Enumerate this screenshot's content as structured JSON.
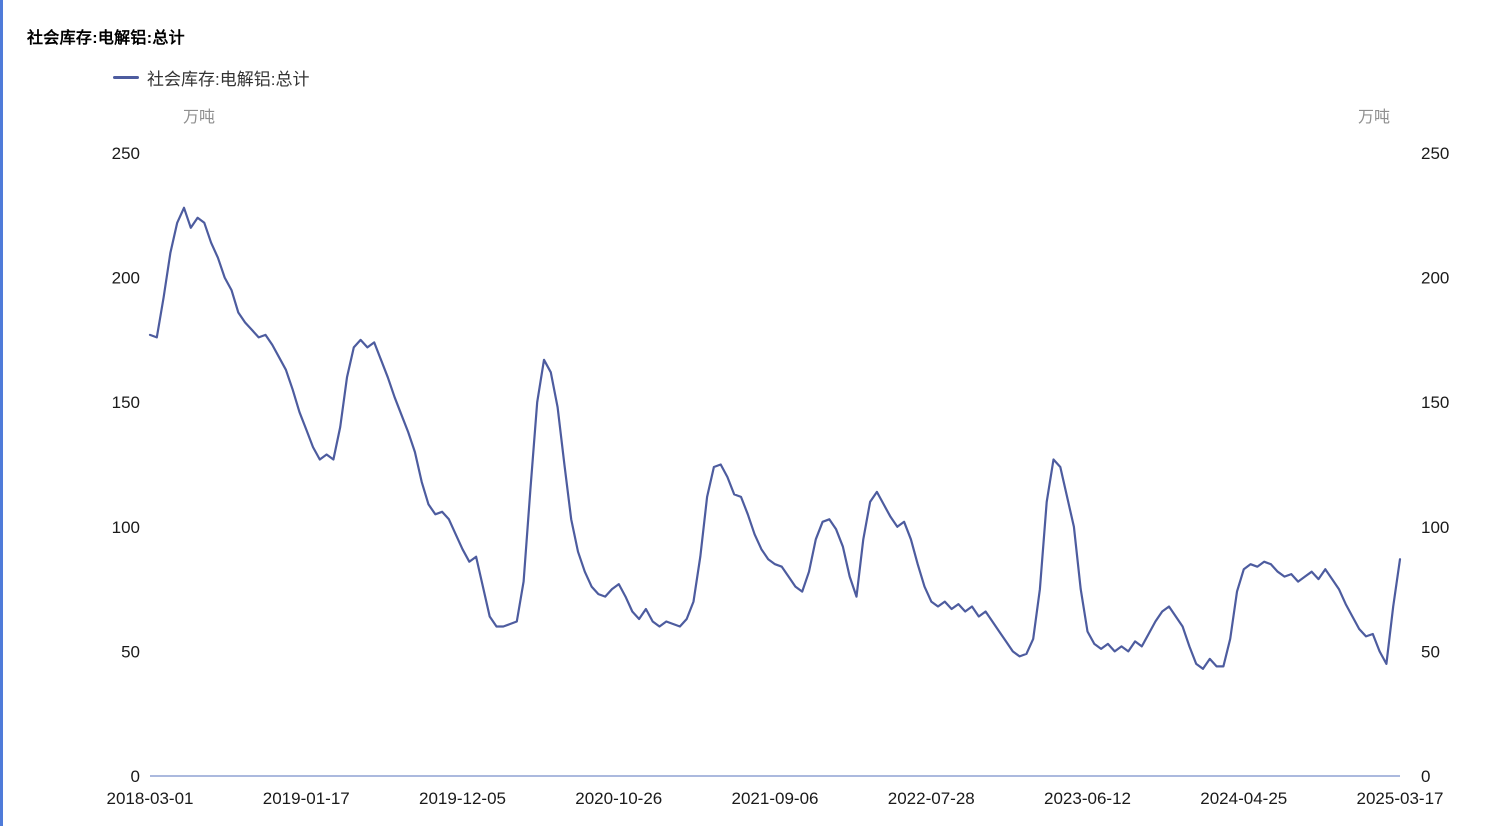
{
  "title": "社会库存:电解铝:总计",
  "legend": {
    "label": "社会库存:电解铝:总计"
  },
  "axis": {
    "unit_left": "万吨",
    "unit_right": "万吨",
    "y_ticks": [
      250,
      200,
      150,
      100,
      50,
      0
    ],
    "x_ticks": [
      "2018-03-01",
      "2019-01-17",
      "2019-12-05",
      "2020-10-26",
      "2021-09-06",
      "2022-07-28",
      "2023-06-12",
      "2024-04-25",
      "2025-03-17"
    ]
  },
  "colors": {
    "line": "#4d5c9f",
    "axis_line": "#8fa2d4",
    "tick_text": "#1a1a1a",
    "unit_text": "#8f8f8f",
    "left_border": "#4f7bd9"
  },
  "chart_data": {
    "type": "line",
    "title": "社会库存:电解铝:总计",
    "series_name": "社会库存:电解铝:总计",
    "ylabel": "万吨",
    "ylim": [
      0,
      250
    ],
    "grid": false,
    "legend_position": "top-left",
    "x_start": "2018-03-01",
    "x_end": "2025-03-17",
    "x_tick_labels": [
      "2018-03-01",
      "2019-01-17",
      "2019-12-05",
      "2020-10-26",
      "2021-09-06",
      "2022-07-28",
      "2023-06-12",
      "2024-04-25",
      "2025-03-17"
    ],
    "values": [
      177,
      176,
      192,
      210,
      222,
      228,
      220,
      224,
      222,
      214,
      208,
      200,
      195,
      186,
      182,
      179,
      176,
      177,
      173,
      168,
      163,
      155,
      146,
      139,
      132,
      127,
      129,
      127,
      140,
      160,
      172,
      175,
      172,
      174,
      167,
      160,
      152,
      145,
      138,
      130,
      118,
      109,
      105,
      106,
      103,
      97,
      91,
      86,
      88,
      76,
      64,
      60,
      60,
      61,
      62,
      78,
      115,
      150,
      167,
      162,
      148,
      125,
      103,
      90,
      82,
      76,
      73,
      72,
      75,
      77,
      72,
      66,
      63,
      67,
      62,
      60,
      62,
      61,
      60,
      63,
      70,
      88,
      112,
      124,
      125,
      120,
      113,
      112,
      105,
      97,
      91,
      87,
      85,
      84,
      80,
      76,
      74,
      82,
      95,
      102,
      103,
      99,
      92,
      80,
      72,
      95,
      110,
      114,
      109,
      104,
      100,
      102,
      95,
      85,
      76,
      70,
      68,
      70,
      67,
      69,
      66,
      68,
      64,
      66,
      62,
      58,
      54,
      50,
      48,
      49,
      55,
      75,
      110,
      127,
      124,
      112,
      100,
      75,
      58,
      53,
      51,
      53,
      50,
      52,
      50,
      54,
      52,
      57,
      62,
      66,
      68,
      64,
      60,
      52,
      45,
      43,
      47,
      44,
      44,
      55,
      74,
      83,
      85,
      84,
      86,
      85,
      82,
      80,
      81,
      78,
      80,
      82,
      79,
      83,
      79,
      75,
      69,
      64,
      59,
      56,
      57,
      50,
      45,
      68,
      87
    ]
  }
}
